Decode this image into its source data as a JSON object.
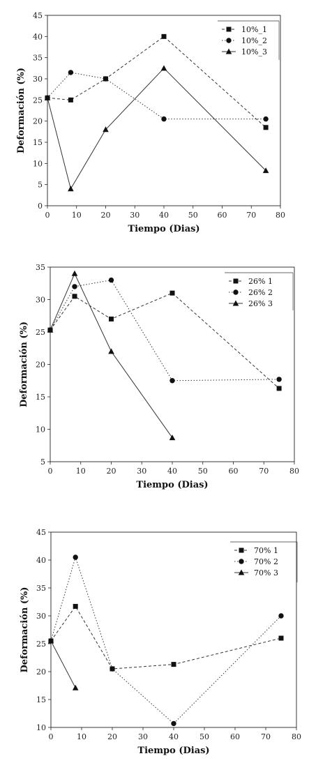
{
  "chart_data": [
    {
      "type": "line",
      "xlabel": "Tiempo (Dias)",
      "ylabel": "Deformación (%)",
      "xlim": [
        0,
        80
      ],
      "ylim": [
        0,
        45
      ],
      "xticks": [
        0,
        10,
        20,
        30,
        40,
        50,
        60,
        70,
        80
      ],
      "yticks": [
        0,
        5,
        10,
        15,
        20,
        25,
        30,
        35,
        40,
        45
      ],
      "xtick_labels": [
        "0",
        "10",
        "20",
        "30",
        "40",
        "50",
        "60",
        "70",
        "80"
      ],
      "ytick_labels": [
        "0",
        "5",
        "10",
        "15",
        "20",
        "25",
        "30",
        "35",
        "40",
        "45"
      ],
      "grid": false,
      "legend_position": "top-right",
      "series": [
        {
          "name": "10%_1",
          "marker": "square",
          "dash": "dashed",
          "x": [
            0,
            8,
            20,
            40,
            75
          ],
          "y": [
            25.5,
            25,
            30,
            40,
            18.5
          ]
        },
        {
          "name": "10%_2",
          "marker": "circle",
          "dash": "dotted",
          "x": [
            0,
            8,
            20,
            40,
            75
          ],
          "y": [
            25.5,
            31.5,
            30,
            20.5,
            20.5
          ]
        },
        {
          "name": "10%_3",
          "marker": "triangle",
          "dash": "solid",
          "x": [
            0,
            8,
            20,
            40,
            75
          ],
          "y": [
            25.5,
            4,
            18,
            32.5,
            8.3
          ]
        }
      ]
    },
    {
      "type": "line",
      "xlabel": "Tiempo (Dias)",
      "ylabel": "Deformación (%)",
      "xlim": [
        0,
        80
      ],
      "ylim": [
        5,
        35
      ],
      "xticks": [
        0,
        10,
        20,
        30,
        40,
        50,
        60,
        70,
        80
      ],
      "yticks": [
        5,
        10,
        15,
        20,
        25,
        30,
        35
      ],
      "xtick_labels": [
        "0",
        "10",
        "20",
        "30",
        "40",
        "50",
        "60",
        "70",
        "80"
      ],
      "ytick_labels": [
        "5",
        "10",
        "15",
        "20",
        "25",
        "30",
        "35"
      ],
      "grid": false,
      "legend_position": "top-right",
      "series": [
        {
          "name": "26% 1",
          "marker": "square",
          "dash": "dashed",
          "x": [
            0,
            8,
            20,
            40,
            75
          ],
          "y": [
            25.3,
            30.5,
            27,
            31,
            16.3
          ]
        },
        {
          "name": "26% 2",
          "marker": "circle",
          "dash": "dotted",
          "x": [
            0,
            8,
            20,
            40,
            75
          ],
          "y": [
            25.3,
            32,
            33,
            17.5,
            17.7
          ]
        },
        {
          "name": "26% 3",
          "marker": "triangle",
          "dash": "solid",
          "x": [
            0,
            8,
            20,
            40
          ],
          "y": [
            25.3,
            34,
            22,
            8.7
          ]
        }
      ]
    },
    {
      "type": "line",
      "xlabel": "Tiempo (Dias)",
      "ylabel": "Deformación (%)",
      "xlim": [
        0,
        80
      ],
      "ylim": [
        10,
        45
      ],
      "xticks": [
        0,
        10,
        20,
        30,
        40,
        50,
        60,
        70,
        80
      ],
      "yticks": [
        10,
        15,
        20,
        25,
        30,
        35,
        40,
        45
      ],
      "xtick_labels": [
        "0",
        "10",
        "20",
        "30",
        "40",
        "50",
        "60",
        "70",
        "80"
      ],
      "ytick_labels": [
        "10",
        "15",
        "20",
        "25",
        "30",
        "35",
        "40",
        "45"
      ],
      "grid": false,
      "legend_position": "top-right",
      "series": [
        {
          "name": "70% 1",
          "marker": "square",
          "dash": "dashed",
          "x": [
            0,
            8,
            20,
            40,
            75
          ],
          "y": [
            25.5,
            31.7,
            20.5,
            21.3,
            26
          ]
        },
        {
          "name": "70% 2",
          "marker": "circle",
          "dash": "dotted",
          "x": [
            0,
            8,
            20,
            40,
            75
          ],
          "y": [
            25.5,
            40.5,
            20.5,
            10.7,
            30
          ]
        },
        {
          "name": "70% 3",
          "marker": "triangle",
          "dash": "solid",
          "x": [
            0,
            8
          ],
          "y": [
            25.5,
            17.1
          ]
        }
      ]
    }
  ]
}
